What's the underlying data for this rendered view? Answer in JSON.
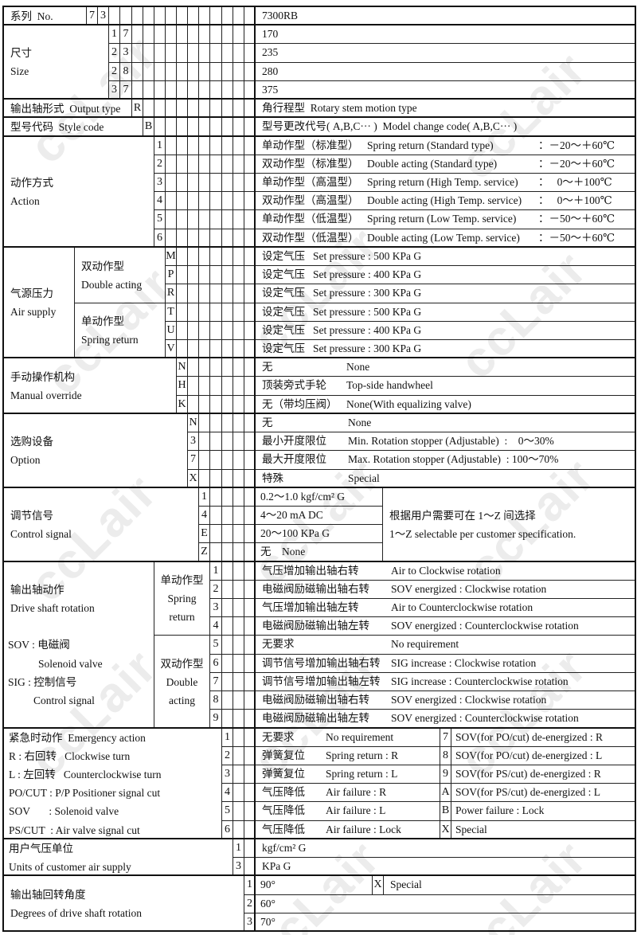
{
  "watermark": "ccLair",
  "series": {
    "label": "系列  No.",
    "codes": [
      "7",
      "3"
    ],
    "desc": "7300RB"
  },
  "size": {
    "label_zh": "尺寸",
    "label_en": "Size",
    "rows": [
      {
        "codes": [
          "1",
          "7"
        ],
        "desc": "170"
      },
      {
        "codes": [
          "2",
          "3"
        ],
        "desc": "235"
      },
      {
        "codes": [
          "2",
          "8"
        ],
        "desc": "280"
      },
      {
        "codes": [
          "3",
          "7"
        ],
        "desc": "375"
      }
    ]
  },
  "output_type": {
    "label": "输出轴形式  Output type",
    "code": "R",
    "desc": "角行程型  Rotary stem motion type"
  },
  "style_code": {
    "label": "型号代码  Style code",
    "code": "B",
    "desc": "型号更改代号( A,B,C··· )  Model change code( A,B,C··· )"
  },
  "action": {
    "label_zh": "动作方式",
    "label_en": "Action",
    "rows": [
      {
        "code": "1",
        "zh": "单动作型（标准型）",
        "en": "Spring return (Standard type)",
        "temp": "：－20～＋60℃"
      },
      {
        "code": "2",
        "zh": "双动作型（标准型）",
        "en": "Double acting (Standard type)",
        "temp": "：－20～＋60℃"
      },
      {
        "code": "3",
        "zh": "单动作型（高温型）",
        "en": "Spring return (High Temp. service)",
        "temp": "：   0～＋100℃"
      },
      {
        "code": "4",
        "zh": "双动作型（高温型）",
        "en": "Double acting (High Temp. service)",
        "temp": "：   0～＋100℃"
      },
      {
        "code": "5",
        "zh": "单动作型（低温型）",
        "en": "Spring return (Low Temp. service)",
        "temp": "：－50～＋60℃"
      },
      {
        "code": "6",
        "zh": "双动作型（低温型）",
        "en": "Double acting (Low Temp. service)",
        "temp": "：－50～＋60℃"
      }
    ]
  },
  "air_supply": {
    "label_zh": "气源压力",
    "label_en": "Air supply",
    "groups": [
      {
        "zh": "双动作型",
        "en": "Double acting",
        "rows": [
          {
            "code": "M",
            "zh": "设定气压",
            "en": "Set pressure : 500 KPa G"
          },
          {
            "code": "P",
            "zh": "设定气压",
            "en": "Set pressure : 400 KPa G"
          },
          {
            "code": "R",
            "zh": "设定气压",
            "en": "Set pressure : 300 KPa G"
          }
        ]
      },
      {
        "zh": "单动作型",
        "en": "Spring return",
        "rows": [
          {
            "code": "T",
            "zh": "设定气压",
            "en": "Set pressure : 500 KPa G"
          },
          {
            "code": "U",
            "zh": "设定气压",
            "en": "Set pressure : 400 KPa G"
          },
          {
            "code": "V",
            "zh": "设定气压",
            "en": "Set pressure : 300 KPa G"
          }
        ]
      }
    ]
  },
  "manual_override": {
    "label_zh": "手动操作机构",
    "label_en": "Manual override",
    "rows": [
      {
        "code": "N",
        "zh": "无",
        "en": "None"
      },
      {
        "code": "H",
        "zh": "顶装旁式手轮",
        "en": "Top-side handwheel"
      },
      {
        "code": "K",
        "zh": "无（带均压阀）",
        "en": "None(With equalizing valve)"
      }
    ]
  },
  "option": {
    "label_zh": "选购设备",
    "label_en": "Option",
    "rows": [
      {
        "code": "N",
        "zh": "无",
        "en": "None"
      },
      {
        "code": "3",
        "zh": "最小开度限位",
        "en": "Min. Rotation stopper (Adjustable)  :    0～30%"
      },
      {
        "code": "7",
        "zh": "最大开度限位",
        "en": "Max. Rotation stopper (Adjustable)  : 100～70%"
      },
      {
        "code": "X",
        "zh": "特殊",
        "en": "Special"
      }
    ]
  },
  "control_signal": {
    "label_zh": "调节信号",
    "label_en": "Control signal",
    "rows": [
      {
        "code": "1",
        "desc": "0.2～1.0 kgf/cm² G"
      },
      {
        "code": "4",
        "desc": "4～20 mA DC"
      },
      {
        "code": "E",
        "desc": "20～100 KPa G"
      },
      {
        "code": "Z",
        "desc": "无    None"
      }
    ],
    "note_zh": "根据用户需要可在 1～Z 间选择",
    "note_en": "1～Z selectable per customer specification."
  },
  "drive_shaft": {
    "label_zh": "输出轴动作",
    "label_en": "Drive shaft rotation",
    "notes": [
      "SOV : 电磁阀",
      "Solenoid valve",
      "SIG : 控制信号",
      "Control signal"
    ],
    "groups": [
      {
        "zh": "单动作型",
        "en1": "Spring",
        "en2": "return",
        "rows": [
          {
            "code": "1",
            "zh": "气压增加输出轴右转",
            "en": "Air to Clockwise rotation"
          },
          {
            "code": "2",
            "zh": "电磁阀励磁输出轴右转",
            "en": "SOV energized : Clockwise rotation"
          },
          {
            "code": "3",
            "zh": "气压增加输出轴左转",
            "en": "Air to Counterclockwise rotation"
          },
          {
            "code": "4",
            "zh": "电磁阀励磁输出轴左转",
            "en": "SOV energized : Counterclockwise rotation"
          }
        ]
      },
      {
        "zh": "双动作型",
        "en1": "Double",
        "en2": "acting",
        "rows": [
          {
            "code": "5",
            "zh": "无要求",
            "en": "No requirement"
          },
          {
            "code": "6",
            "zh": "调节信号增加输出轴右转",
            "en": "SIG increase : Clockwise rotation"
          },
          {
            "code": "7",
            "zh": "调节信号增加输出轴左转",
            "en": "SIG increase : Counterclockwise rotation"
          },
          {
            "code": "8",
            "zh": "电磁阀励磁输出轴右转",
            "en": "SOV energized : Clockwise rotation"
          },
          {
            "code": "9",
            "zh": "电磁阀励磁输出轴左转",
            "en": "SOV energized : Counterclockwise rotation"
          }
        ]
      }
    ]
  },
  "emergency": {
    "label_lines": [
      "紧急时动作  Emergency action",
      "R : 右回转   Clockwise turn",
      "L : 左回转   Counterclockwise turn",
      "PO/CUT : P/P Positioner signal cut",
      "SOV       : Solenoid valve",
      "PS/CUT  : Air valve signal cut"
    ],
    "rows": [
      {
        "code": "1",
        "zh": "无要求",
        "en": "No requirement",
        "code2": "7",
        "desc2": "SOV(for PO/cut) de-energized : R"
      },
      {
        "code": "2",
        "zh": "弹簧复位",
        "en": "Spring return : R",
        "code2": "8",
        "desc2": "SOV(for PO/cut) de-energized : L"
      },
      {
        "code": "3",
        "zh": "弹簧复位",
        "en": "Spring return : L",
        "code2": "9",
        "desc2": "SOV(for PS/cut) de-energized : R"
      },
      {
        "code": "4",
        "zh": "气压降低",
        "en": "Air failure : R",
        "code2": "A",
        "desc2": "SOV(for PS/cut) de-energized : L"
      },
      {
        "code": "5",
        "zh": "气压降低",
        "en": "Air failure : L",
        "code2": "B",
        "desc2": "Power failure : Lock"
      },
      {
        "code": "6",
        "zh": "气压降低",
        "en": "Air failure : Lock",
        "code2": "X",
        "desc2": "Special"
      }
    ]
  },
  "units": {
    "label_zh": "用户气压单位",
    "label_en": "Units of customer air supply",
    "rows": [
      {
        "code": "1",
        "desc": "kgf/cm² G"
      },
      {
        "code": "3",
        "desc": "KPa G"
      }
    ]
  },
  "degrees": {
    "label_zh": "输出轴回转角度",
    "label_en": "Degrees of drive shaft rotation",
    "rows": [
      {
        "code": "1",
        "desc": "90°"
      },
      {
        "code": "2",
        "desc": "60°"
      },
      {
        "code": "3",
        "desc": "70°"
      }
    ],
    "special_code": "X",
    "special_desc": "Special"
  }
}
